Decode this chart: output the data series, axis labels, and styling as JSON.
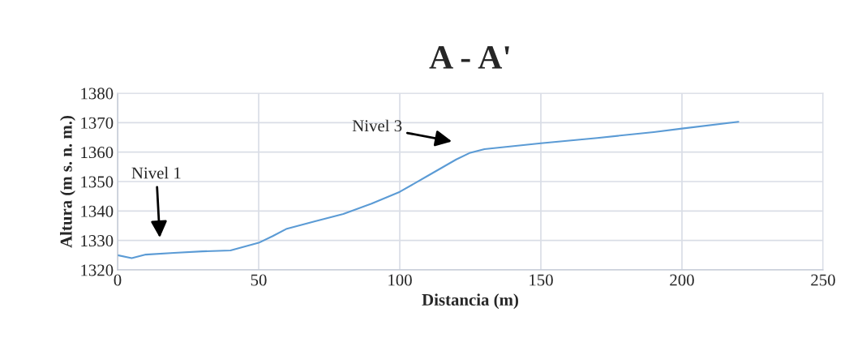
{
  "chart_data": {
    "type": "line",
    "title": "A - A'",
    "xlabel": "Distancia (m)",
    "ylabel": "Altura (m s. n. m.)",
    "x": [
      0,
      5,
      10,
      20,
      30,
      40,
      50,
      55,
      60,
      70,
      80,
      90,
      100,
      110,
      120,
      125,
      130,
      150,
      170,
      190,
      200,
      220
    ],
    "series": [
      {
        "color": "#5b9bd5",
        "values": [
          1325,
          1324,
          1325.2,
          1325.8,
          1326.3,
          1326.6,
          1329.2,
          1331.5,
          1334,
          1336.5,
          1339,
          1342.5,
          1346.5,
          1352,
          1357.5,
          1359.8,
          1361,
          1363,
          1364.8,
          1366.8,
          1368,
          1370.3
        ]
      }
    ],
    "xlim": [
      0,
      250
    ],
    "xticks": [
      0,
      50,
      100,
      150,
      200,
      250
    ],
    "ylim": [
      1320,
      1380
    ],
    "yticks": [
      1320,
      1330,
      1340,
      1350,
      1360,
      1370,
      1380
    ],
    "grid": true,
    "legend": false,
    "marker": "none",
    "line_style": "solid",
    "annotations": [
      "Nivel 1",
      "Nivel 3"
    ]
  }
}
